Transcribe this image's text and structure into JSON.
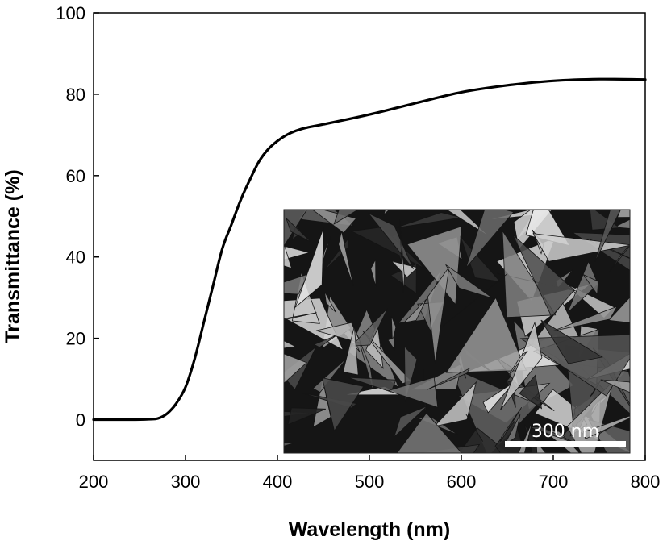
{
  "chart_data": {
    "type": "line",
    "title": "",
    "xlabel": "Wavelength (nm)",
    "ylabel": "Transmittance (%)",
    "xlim": [
      200,
      800
    ],
    "ylim": [
      -10,
      100
    ],
    "xticks": [
      200,
      300,
      400,
      500,
      600,
      700,
      800
    ],
    "yticks": [
      0,
      20,
      40,
      60,
      80,
      100
    ],
    "grid": false,
    "legend": "none",
    "line_color": "#000000",
    "series": [
      {
        "values": [
          [
            200,
            0
          ],
          [
            220,
            0
          ],
          [
            240,
            0
          ],
          [
            260,
            0.1
          ],
          [
            270,
            0.3
          ],
          [
            280,
            1.5
          ],
          [
            290,
            4
          ],
          [
            300,
            8
          ],
          [
            310,
            15
          ],
          [
            320,
            24
          ],
          [
            330,
            33
          ],
          [
            340,
            42
          ],
          [
            350,
            48
          ],
          [
            360,
            54
          ],
          [
            370,
            59
          ],
          [
            380,
            63.5
          ],
          [
            390,
            66.5
          ],
          [
            400,
            68.5
          ],
          [
            410,
            70
          ],
          [
            420,
            71
          ],
          [
            430,
            71.7
          ],
          [
            450,
            72.6
          ],
          [
            500,
            75
          ],
          [
            550,
            77.8
          ],
          [
            600,
            80.5
          ],
          [
            650,
            82.2
          ],
          [
            700,
            83.3
          ],
          [
            750,
            83.7
          ],
          [
            800,
            83.6
          ]
        ]
      }
    ],
    "inset": {
      "kind": "SEM micrograph",
      "scale_bar_label": "300 nm"
    }
  }
}
